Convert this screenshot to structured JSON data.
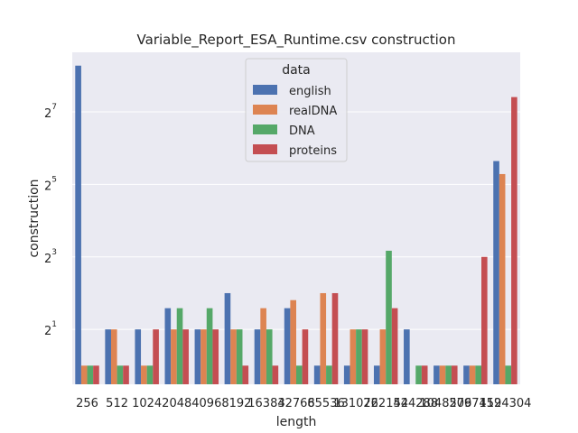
{
  "chart_data": {
    "type": "bar",
    "title": "Variable_Report_ESA_Runtime.csv construction",
    "xlabel": "length",
    "ylabel": "construction",
    "y_scale": "log2",
    "ylim": [
      0.7,
      400
    ],
    "y_ticks": [
      {
        "value": 2,
        "base": "2",
        "exp": "1"
      },
      {
        "value": 8,
        "base": "2",
        "exp": "3"
      },
      {
        "value": 32,
        "base": "2",
        "exp": "5"
      },
      {
        "value": 128,
        "base": "2",
        "exp": "7"
      }
    ],
    "grid": true,
    "legend": {
      "title": "data",
      "placement": "top-center"
    },
    "categories": [
      "256",
      "512",
      "1024",
      "2048",
      "4096",
      "8192",
      "16384",
      "32768",
      "65536",
      "131072",
      "262144",
      "524288",
      "1048576",
      "2097152",
      "4194304"
    ],
    "series": [
      {
        "name": "english",
        "color": "#4c72b0",
        "values": [
          310,
          2,
          2,
          3,
          2,
          4,
          2,
          3,
          1,
          1,
          1,
          2,
          1,
          1,
          50
        ]
      },
      {
        "name": "realDNA",
        "color": "#dd8452",
        "values": [
          1,
          2,
          1,
          2,
          2,
          2,
          3,
          3.5,
          4,
          2,
          2,
          0,
          1,
          1,
          39
        ]
      },
      {
        "name": "DNA",
        "color": "#55a868",
        "values": [
          1,
          1,
          1,
          3,
          3,
          2,
          2,
          1,
          1,
          2,
          9,
          1,
          1,
          1,
          1
        ]
      },
      {
        "name": "proteins",
        "color": "#c44e52",
        "values": [
          1,
          1,
          2,
          2,
          2,
          1,
          1,
          2,
          4,
          2,
          3,
          1,
          1,
          8,
          170
        ]
      }
    ]
  }
}
